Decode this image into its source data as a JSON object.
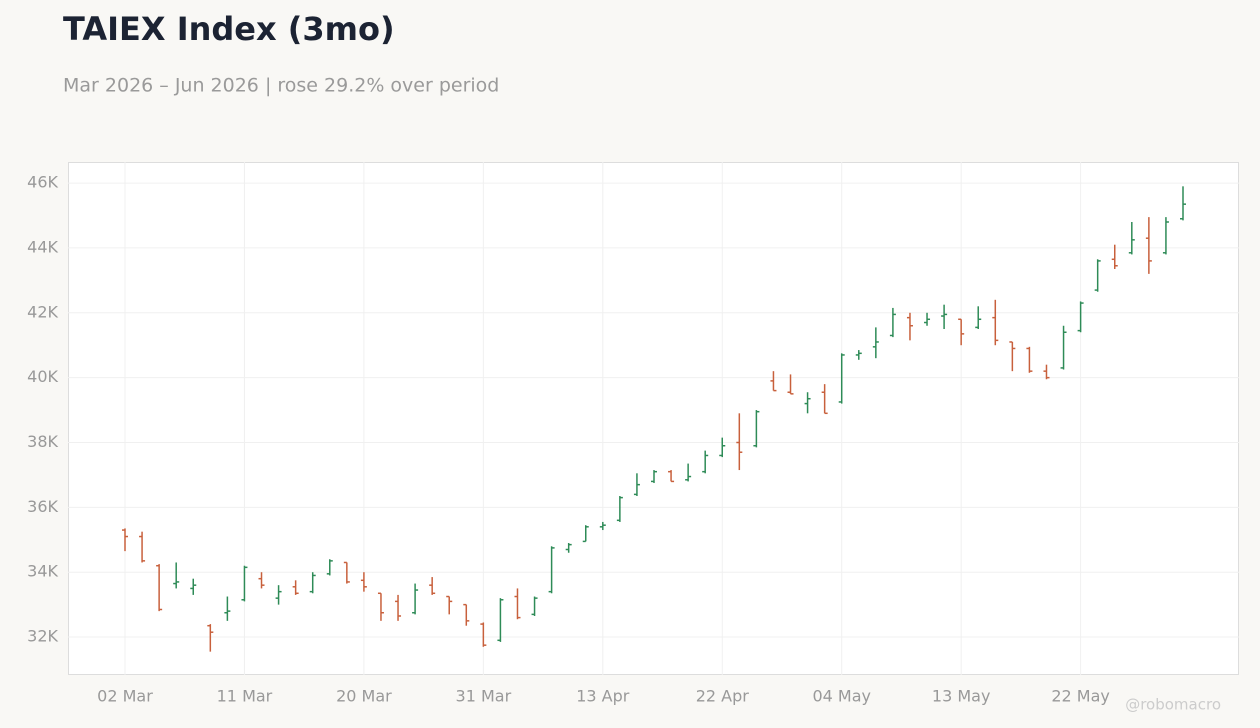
{
  "chart_data": {
    "type": "ohlc",
    "title": "TAIEX Index (3mo)",
    "subtitle": "Mar 2026 – Jun 2026 | rose 29.2% over period",
    "watermark": "@robomacro",
    "categories": [
      "02 Mar",
      null,
      null,
      null,
      null,
      null,
      null,
      "11 Mar",
      null,
      null,
      null,
      null,
      null,
      null,
      "20 Mar",
      null,
      null,
      null,
      null,
      null,
      null,
      "31 Mar",
      null,
      null,
      null,
      null,
      null,
      null,
      "13 Apr",
      null,
      null,
      null,
      null,
      null,
      null,
      "22 Apr",
      null,
      null,
      null,
      null,
      null,
      null,
      "04 May",
      null,
      null,
      null,
      null,
      null,
      null,
      "13 May",
      null,
      null,
      null,
      null,
      null,
      null,
      "22 May",
      null,
      null,
      null,
      null,
      null,
      null
    ],
    "open": [
      35300,
      35100,
      34200,
      33650,
      33500,
      32350,
      32750,
      33150,
      33800,
      33200,
      33550,
      33400,
      33950,
      34300,
      33750,
      33350,
      33100,
      32750,
      33600,
      33250,
      33000,
      32400,
      31900,
      33250,
      32700,
      33400,
      34700,
      34950,
      35400,
      35600,
      36400,
      36800,
      37100,
      36850,
      37100,
      37600,
      38000,
      37900,
      39900,
      39550,
      39200,
      39550,
      39250,
      40700,
      40950,
      41300,
      41850,
      41700,
      41900,
      41800,
      41550,
      41850,
      41100,
      40900,
      40200,
      40300,
      41450,
      42700,
      43650,
      43850,
      44300,
      43850,
      44900
    ],
    "high": [
      35350,
      35250,
      34250,
      34300,
      33800,
      32400,
      33250,
      34200,
      34000,
      33600,
      33750,
      34000,
      34400,
      34300,
      34000,
      33350,
      33300,
      33650,
      33850,
      33250,
      33000,
      32450,
      33200,
      33500,
      33250,
      34800,
      34900,
      35450,
      35550,
      36350,
      37050,
      37150,
      37150,
      37350,
      37750,
      38150,
      38900,
      39000,
      40200,
      40100,
      39550,
      39800,
      40750,
      40850,
      41550,
      42150,
      42000,
      42000,
      42250,
      41800,
      42200,
      42400,
      41100,
      40950,
      40400,
      41600,
      42350,
      43650,
      44100,
      44800,
      44950,
      44950,
      45900
    ],
    "low": [
      34650,
      34300,
      32800,
      33500,
      33300,
      31550,
      32500,
      33100,
      33500,
      33000,
      33300,
      33350,
      33900,
      33650,
      33400,
      32500,
      32500,
      32700,
      33300,
      32700,
      32350,
      31700,
      31850,
      32550,
      32650,
      33350,
      34600,
      34950,
      35300,
      35550,
      36350,
      36750,
      36800,
      36800,
      37050,
      37550,
      37150,
      37850,
      39600,
      39500,
      38900,
      38900,
      39200,
      40550,
      40600,
      41250,
      41150,
      41600,
      41500,
      41000,
      41500,
      41000,
      40200,
      40150,
      39950,
      40250,
      41400,
      42650,
      43350,
      43800,
      43200,
      43800,
      44850
    ],
    "close": [
      35100,
      34350,
      32850,
      33700,
      33600,
      32150,
      32800,
      34150,
      33600,
      33400,
      33350,
      33900,
      34350,
      33700,
      33550,
      32750,
      32650,
      33450,
      33350,
      33100,
      32500,
      31750,
      33150,
      32600,
      33200,
      34750,
      34850,
      35400,
      35450,
      36300,
      36700,
      37100,
      36800,
      36950,
      37600,
      37900,
      37700,
      38950,
      39600,
      39500,
      39350,
      38900,
      40700,
      40750,
      41100,
      41950,
      41600,
      41800,
      41950,
      41350,
      41800,
      41150,
      40900,
      40200,
      40000,
      41400,
      42300,
      43600,
      43450,
      44250,
      43600,
      44800,
      45350
    ],
    "up_color": "#2e8b57",
    "down_color": "#c8603c",
    "ylim": [
      30830,
      46650
    ],
    "yticks": [
      {
        "value": 32000,
        "label": "32K"
      },
      {
        "value": 34000,
        "label": "34K"
      },
      {
        "value": 36000,
        "label": "36K"
      },
      {
        "value": 38000,
        "label": "38K"
      },
      {
        "value": 40000,
        "label": "40K"
      },
      {
        "value": 42000,
        "label": "42K"
      },
      {
        "value": 44000,
        "label": "44K"
      },
      {
        "value": 46000,
        "label": "46K"
      }
    ],
    "grid": true
  }
}
